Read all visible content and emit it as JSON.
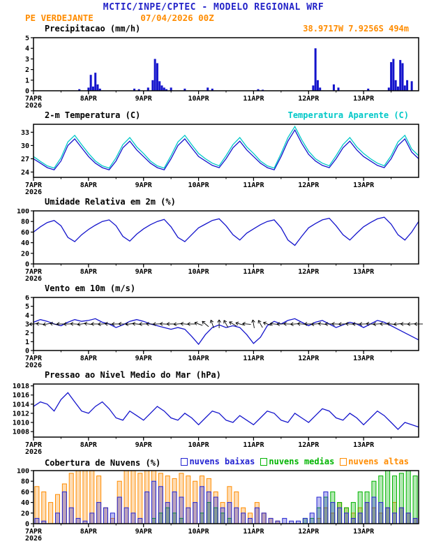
{
  "header": {
    "title": "MCTIC/INPE/CPTEC - MODELO REGIONAL WRF",
    "station": "PE VERDEJANTE",
    "run": "07/04/2026 00Z",
    "title_color": "#2323c8",
    "accent_color": "#ff8c00"
  },
  "xaxis": {
    "hours": 168,
    "step_hours": 3,
    "day_tick_hours": [
      0,
      24,
      48,
      72,
      96,
      120,
      144
    ],
    "day_labels": [
      "7APR",
      "8APR",
      "9APR",
      "10APR",
      "11APR",
      "12APR",
      "13APR"
    ],
    "year_label": "2026"
  },
  "chart_data": [
    {
      "type": "bar",
      "title": "Precipitacao (mm/h)",
      "annotation": "38.9717W 7.9256S 494m",
      "annotation_color": "#ff8c00",
      "ylim": [
        0,
        5
      ],
      "yticks": [
        0,
        1,
        2,
        3,
        4,
        5
      ],
      "bar_color": "#1414cc",
      "events_hour_value": [
        [
          20,
          0.15
        ],
        [
          24,
          0.3
        ],
        [
          25,
          1.5
        ],
        [
          26,
          0.4
        ],
        [
          27,
          1.7
        ],
        [
          28,
          0.6
        ],
        [
          29,
          0.2
        ],
        [
          44,
          0.2
        ],
        [
          46,
          0.15
        ],
        [
          50,
          0.3
        ],
        [
          52,
          1.0
        ],
        [
          53,
          3.0
        ],
        [
          54,
          2.6
        ],
        [
          55,
          0.9
        ],
        [
          56,
          0.5
        ],
        [
          57,
          0.3
        ],
        [
          58,
          0.15
        ],
        [
          60,
          0.3
        ],
        [
          66,
          0.2
        ],
        [
          76,
          0.3
        ],
        [
          78,
          0.2
        ],
        [
          98,
          0.15
        ],
        [
          100,
          0.1
        ],
        [
          122,
          0.5
        ],
        [
          123,
          4.0
        ],
        [
          124,
          1.0
        ],
        [
          125,
          0.3
        ],
        [
          131,
          0.6
        ],
        [
          133,
          0.3
        ],
        [
          146,
          0.2
        ],
        [
          155,
          0.3
        ],
        [
          156,
          2.7
        ],
        [
          157,
          3.0
        ],
        [
          158,
          1.0
        ],
        [
          159,
          0.4
        ],
        [
          160,
          2.9
        ],
        [
          161,
          2.6
        ],
        [
          162,
          0.5
        ],
        [
          163,
          1.0
        ],
        [
          165,
          0.9
        ]
      ]
    },
    {
      "type": "line",
      "title": "2-m Temperatura (C)",
      "annotation": "Temperatura Aparente (C)",
      "annotation_color": "#00c8c8",
      "ylim": [
        22.8,
        34.8
      ],
      "yticks": [
        24,
        27,
        30,
        33
      ],
      "series": [
        {
          "name": "2-m Temperatura",
          "color": "#1414cc",
          "values": [
            27,
            26,
            25,
            24.5,
            26.5,
            30,
            31.5,
            29.5,
            27.5,
            26,
            25,
            24.5,
            26.5,
            29.5,
            31,
            29,
            27.5,
            26,
            25,
            24.5,
            27,
            30,
            31.5,
            29.5,
            27.5,
            26.5,
            25.5,
            25,
            27,
            29.5,
            31,
            29,
            27.5,
            26,
            25,
            24.5,
            27.5,
            31,
            33.5,
            30.5,
            28,
            26.5,
            25.5,
            25,
            27,
            29.5,
            31,
            29,
            27.5,
            26.5,
            25.5,
            25,
            27,
            30,
            31.5,
            28.5,
            27
          ]
        },
        {
          "name": "Temperatura Aparente",
          "color": "#00c8c8",
          "values": [
            27.5,
            26.4,
            25.4,
            24.9,
            27.2,
            30.8,
            32.3,
            30.2,
            28.2,
            26.5,
            25.4,
            24.9,
            27.2,
            30.2,
            31.8,
            29.7,
            28.2,
            26.5,
            25.4,
            24.9,
            27.7,
            30.8,
            32.3,
            30.2,
            28.2,
            27,
            26,
            25.4,
            27.7,
            30.2,
            31.8,
            29.7,
            28.2,
            26.5,
            25.4,
            24.9,
            28.2,
            31.8,
            34.3,
            31.3,
            28.7,
            27,
            26,
            25.4,
            27.7,
            30.2,
            31.8,
            29.7,
            28.2,
            27,
            26,
            25.4,
            27.7,
            30.8,
            32.3,
            29.2,
            27.7
          ]
        }
      ]
    },
    {
      "type": "line",
      "title": "Umidade Relativa em 2m (%)",
      "ylim": [
        0,
        100
      ],
      "yticks": [
        0,
        20,
        40,
        60,
        80,
        100
      ],
      "series": [
        {
          "name": "Umidade Relativa",
          "color": "#1414cc",
          "values": [
            60,
            70,
            78,
            82,
            72,
            50,
            42,
            55,
            65,
            73,
            80,
            83,
            72,
            52,
            43,
            56,
            66,
            74,
            80,
            84,
            70,
            50,
            42,
            55,
            68,
            75,
            82,
            85,
            72,
            55,
            45,
            58,
            66,
            74,
            80,
            83,
            68,
            45,
            35,
            52,
            68,
            76,
            83,
            86,
            72,
            55,
            45,
            58,
            70,
            78,
            85,
            88,
            75,
            55,
            45,
            60,
            80
          ]
        }
      ]
    },
    {
      "type": "line",
      "title": "Vento em 10m (m/s)",
      "ylim": [
        0,
        6
      ],
      "yticks": [
        0,
        1,
        2,
        3,
        4,
        5,
        6
      ],
      "series": [
        {
          "name": "Vento 10m",
          "color": "#1414cc",
          "values": [
            3.2,
            3.5,
            3.3,
            3.0,
            2.8,
            3.2,
            3.5,
            3.3,
            3.4,
            3.6,
            3.2,
            3.0,
            2.6,
            2.9,
            3.3,
            3.5,
            3.3,
            3.0,
            2.8,
            2.6,
            2.4,
            2.6,
            2.4,
            1.6,
            0.7,
            1.8,
            2.6,
            2.9,
            2.6,
            2.8,
            2.6,
            1.8,
            0.8,
            1.5,
            2.8,
            3.3,
            3.0,
            3.4,
            3.6,
            3.2,
            2.8,
            3.2,
            3.4,
            3.0,
            2.6,
            2.9,
            3.2,
            3.0,
            2.6,
            3.0,
            3.4,
            3.2,
            2.8,
            2.4,
            2.0,
            1.6,
            1.2
          ]
        }
      ],
      "barbs": {
        "color": "#000000",
        "plot_level": 3,
        "directions_deg": [
          175,
          185,
          170,
          190,
          180,
          178,
          183,
          172,
          188,
          180,
          176,
          184,
          179,
          181,
          174,
          186,
          178,
          182,
          177,
          183,
          180,
          175,
          185,
          180,
          200,
          220,
          250,
          270,
          240,
          210,
          195,
          185,
          260,
          240,
          200,
          185,
          178,
          182,
          176,
          184,
          180,
          175,
          185,
          178,
          182,
          177,
          183,
          180,
          178,
          184,
          176,
          182,
          186,
          174,
          180,
          177,
          180
        ]
      }
    },
    {
      "type": "line",
      "title": "Pressao ao Nivel Medio do Mar (hPa)",
      "ylim": [
        1006.8,
        1018.4
      ],
      "yticks": [
        1008,
        1010,
        1012,
        1014,
        1016,
        1018
      ],
      "series": [
        {
          "name": "Pressao",
          "color": "#1414cc",
          "values": [
            1013.5,
            1014.5,
            1014,
            1012.5,
            1015,
            1016.5,
            1014.5,
            1012.5,
            1012,
            1013.5,
            1014.5,
            1013,
            1011,
            1010.5,
            1012.5,
            1011.5,
            1010.5,
            1012,
            1013.5,
            1012.5,
            1011,
            1010.5,
            1012,
            1011,
            1009.5,
            1011,
            1012.5,
            1012,
            1010.5,
            1010,
            1011.5,
            1010.5,
            1009.5,
            1011,
            1012.5,
            1012,
            1010.5,
            1010,
            1012,
            1011,
            1010,
            1011.5,
            1013,
            1012.5,
            1011,
            1010.5,
            1012,
            1011,
            1009.5,
            1011,
            1012.5,
            1011.5,
            1010,
            1008.5,
            1010,
            1009.5,
            1009
          ]
        }
      ]
    },
    {
      "type": "cloudbar",
      "title": "Cobertura de Nuvens (%)",
      "ylim": [
        0,
        100
      ],
      "yticks": [
        0,
        20,
        40,
        60,
        80,
        100
      ],
      "legend": [
        {
          "label": "nuvens baixas",
          "color": "#2323d2"
        },
        {
          "label": "nuvens medias",
          "color": "#00b400"
        },
        {
          "label": "nuvens altas",
          "color": "#ff8c00"
        }
      ],
      "series": [
        {
          "name": "nuvens altas",
          "color": "#ff8c00",
          "values": [
            70,
            60,
            40,
            55,
            75,
            95,
            100,
            100,
            100,
            90,
            30,
            10,
            80,
            100,
            100,
            95,
            100,
            100,
            95,
            90,
            85,
            95,
            90,
            80,
            90,
            85,
            60,
            40,
            70,
            60,
            30,
            20,
            40,
            20,
            10,
            5,
            0,
            0,
            0,
            0,
            0,
            10,
            30,
            20,
            40,
            30,
            20,
            30,
            40,
            30,
            20,
            30,
            40,
            30,
            20,
            10
          ]
        },
        {
          "name": "nuvens medias",
          "color": "#00b400",
          "values": [
            0,
            0,
            0,
            0,
            0,
            0,
            0,
            0,
            0,
            0,
            0,
            0,
            0,
            0,
            0,
            0,
            0,
            10,
            20,
            30,
            20,
            10,
            0,
            0,
            20,
            40,
            30,
            20,
            10,
            0,
            0,
            0,
            0,
            0,
            0,
            0,
            0,
            0,
            0,
            10,
            10,
            30,
            50,
            60,
            40,
            30,
            40,
            60,
            60,
            80,
            90,
            100,
            90,
            95,
            100,
            90
          ]
        },
        {
          "name": "nuvens baixas",
          "color": "#2323d2",
          "values": [
            10,
            5,
            0,
            20,
            60,
            30,
            10,
            5,
            20,
            40,
            30,
            20,
            50,
            30,
            20,
            10,
            60,
            80,
            70,
            40,
            60,
            50,
            30,
            40,
            70,
            60,
            50,
            30,
            40,
            30,
            20,
            10,
            30,
            20,
            10,
            5,
            10,
            5,
            5,
            10,
            20,
            50,
            60,
            40,
            30,
            20,
            10,
            20,
            40,
            50,
            40,
            30,
            20,
            30,
            20,
            10
          ]
        }
      ]
    }
  ]
}
